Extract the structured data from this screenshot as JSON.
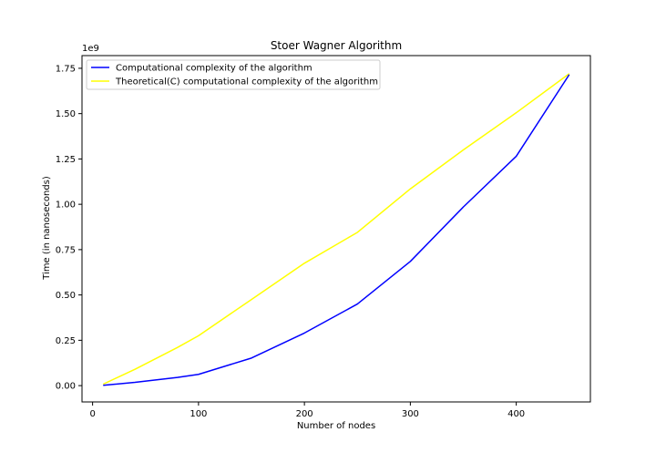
{
  "chart_data": {
    "type": "line",
    "title": "Stoer Wagner Algorithm",
    "xlabel": "Number of nodes",
    "ylabel": "Time (in nanoseconds)",
    "y_offset_label": "1e9",
    "xlim": [
      -10,
      470
    ],
    "ylim": [
      -0.09,
      1.82
    ],
    "x_ticks": [
      0,
      100,
      200,
      300,
      400
    ],
    "y_ticks": [
      0.0,
      0.25,
      0.5,
      0.75,
      1.0,
      1.25,
      1.5,
      1.75
    ],
    "y_tick_labels": [
      "0.00",
      "0.25",
      "0.50",
      "0.75",
      "1.00",
      "1.25",
      "1.50",
      "1.75"
    ],
    "y_unit_multiplier": 1000000000,
    "grid": false,
    "legend_position": "upper-left",
    "series": [
      {
        "name": "Computational complexity of the algorithm",
        "color": "#0000ff",
        "x": [
          10,
          40,
          80,
          100,
          150,
          200,
          250,
          300,
          350,
          400,
          450
        ],
        "y": [
          0.002,
          0.018,
          0.045,
          0.062,
          0.152,
          0.29,
          0.45,
          0.685,
          0.985,
          1.265,
          1.715
        ]
      },
      {
        "name": "Theoretical(C) computational complexity of the algorithm",
        "color": "#ffff00",
        "x": [
          10,
          40,
          80,
          100,
          150,
          200,
          250,
          300,
          350,
          400,
          450
        ],
        "y": [
          0.008,
          0.09,
          0.21,
          0.275,
          0.475,
          0.675,
          0.845,
          1.085,
          1.3,
          1.505,
          1.72
        ]
      }
    ]
  }
}
